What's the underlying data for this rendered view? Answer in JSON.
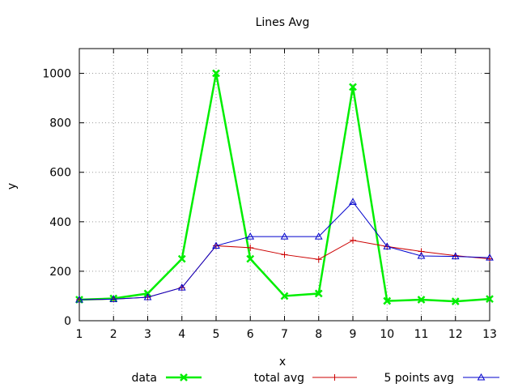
{
  "chart_data": {
    "type": "line",
    "title": "Lines Avg",
    "xlabel": "x",
    "ylabel": "y",
    "xlim": [
      1,
      13
    ],
    "ylim": [
      0,
      1100
    ],
    "x": [
      1,
      2,
      3,
      4,
      5,
      6,
      7,
      8,
      9,
      10,
      11,
      12,
      13
    ],
    "xticks": [
      "1",
      "2",
      "3",
      "4",
      "5",
      "6",
      "7",
      "8",
      "9",
      "10",
      "11",
      "12",
      "13"
    ],
    "yticks": [
      0,
      200,
      400,
      600,
      800,
      1000
    ],
    "ytick_labels": [
      "0",
      "200",
      "400",
      "600",
      "800",
      "1000"
    ],
    "grid": true,
    "legend": "bottom",
    "series": [
      {
        "name": "data",
        "color": "#00ee00",
        "marker": "cross-x",
        "values": [
          85,
          90,
          110,
          250,
          1000,
          250,
          100,
          110,
          945,
          80,
          85,
          78,
          88
        ]
      },
      {
        "name": "total avg",
        "color": "#cc0000",
        "marker": "plus",
        "values": [
          85,
          87,
          95,
          134,
          303,
          295,
          267,
          248,
          325,
          300,
          280,
          263,
          250
        ]
      },
      {
        "name": "5 points avg",
        "color": "#0000cc",
        "marker": "triangle",
        "values": [
          85,
          87,
          95,
          134,
          303,
          340,
          340,
          340,
          480,
          300,
          262,
          260,
          255
        ]
      }
    ]
  }
}
